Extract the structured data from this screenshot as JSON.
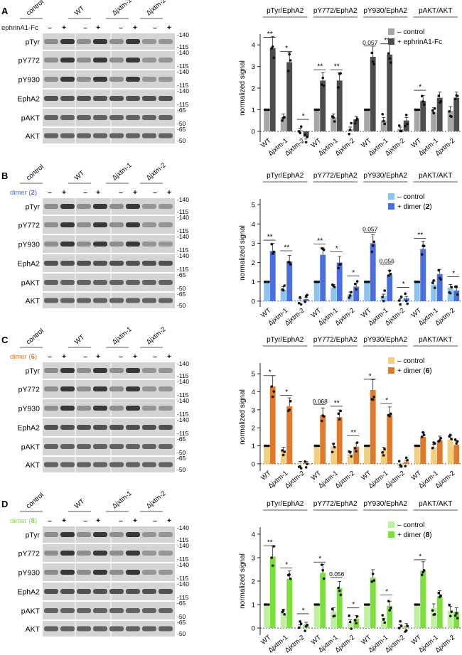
{
  "panels": [
    {
      "letter": "A",
      "treatment_label": "ephrinA1-Fc",
      "treatment_num": "",
      "main_color": "#4d4d4d",
      "light_color": "#a6a6a6",
      "legend": [
        "– control",
        "+ ephrinA1-Fc"
      ],
      "blot_rows": [
        "pTyr",
        "pY772",
        "pY930",
        "EphA2",
        "pAKT",
        "AKT"
      ],
      "marker_sets": [
        [
          "-140",
          "-115"
        ],
        [
          "-140",
          "-115"
        ],
        [
          "-140",
          "-115"
        ],
        [
          "-140",
          "-115"
        ],
        [
          "-65",
          "-50"
        ],
        [
          "-65",
          "-50"
        ]
      ],
      "chart_data": {
        "type": "bar",
        "ylabel": "normalized signal",
        "ylim": [
          -0.5,
          4.5
        ],
        "yticks": [
          0,
          1,
          2,
          3,
          4
        ],
        "groups": [
          "pTyr/EphA2",
          "pY772/EphA2",
          "pY930/EphA2",
          "pAKT/AKT"
        ],
        "categories": [
          "WT",
          "Δjxtm-1",
          "Δjxtm-2"
        ],
        "series": [
          {
            "name": "– control",
            "values": [
              [
                1,
                0.65,
                0.05
              ],
              [
                1,
                0.65,
                0.1
              ],
              [
                1,
                0.5,
                0.1
              ],
              [
                1,
                0.9,
                0.95
              ]
            ]
          },
          {
            "name": "+ ephrinA1-Fc",
            "values": [
              [
                3.85,
                3.2,
                -0.25
              ],
              [
                2.35,
                2.35,
                0.55
              ],
              [
                3.45,
                3.55,
                0.5
              ],
              [
                1.4,
                1.55,
                1.55
              ]
            ]
          }
        ],
        "annotations": [
          {
            "text": "**",
            "group": 0,
            "cat": 0
          },
          {
            "text": "*",
            "group": 0,
            "cat": 1
          },
          {
            "text": "*",
            "group": 0,
            "cat": 2
          },
          {
            "text": "**",
            "group": 1,
            "cat": 0
          },
          {
            "text": "**",
            "group": 1,
            "cat": 1
          },
          {
            "text": "0.057",
            "group": 2,
            "cat": 0
          },
          {
            "text": "**",
            "group": 2,
            "cat": 1
          },
          {
            "text": "*",
            "group": 3,
            "cat": 0
          }
        ]
      }
    },
    {
      "letter": "B",
      "treatment_label": "dimer (",
      "treatment_num": "2",
      "main_color": "#4a6ee0",
      "light_color": "#8cc4f0",
      "legend": [
        "– control",
        "+ dimer (2)"
      ],
      "blot_rows": [
        "pTyr",
        "pY772",
        "pY930",
        "EphA2",
        "pAKT",
        "AKT"
      ],
      "marker_sets": [
        [
          "-140",
          "-115"
        ],
        [
          "-140",
          "-115"
        ],
        [
          "-140",
          "-115"
        ],
        [
          "-140",
          "-115"
        ],
        [
          "-65",
          "-50"
        ],
        [
          "-65",
          "-50"
        ]
      ],
      "chart_data": {
        "type": "bar",
        "ylabel": "normalized signal",
        "ylim": [
          -0.3,
          5.3
        ],
        "yticks": [
          0,
          1,
          2,
          3,
          4,
          5
        ],
        "groups": [
          "pTyr/EphA2",
          "pY772/EphA2",
          "pY930/EphA2",
          "pAKT/AKT"
        ],
        "categories": [
          "WT",
          "Δjxtm-1",
          "Δjxtm-2"
        ],
        "series": [
          {
            "name": "– control",
            "values": [
              [
                1,
                0.6,
                0.05
              ],
              [
                1,
                0.7,
                0.35
              ],
              [
                1,
                0.25,
                0.05
              ],
              [
                1,
                0.85,
                0.7
              ]
            ]
          },
          {
            "name": "+ dimer (2)",
            "values": [
              [
                2.6,
                2.05,
                0.1
              ],
              [
                2.4,
                2.0,
                0.75
              ],
              [
                3.0,
                1.35,
                0.15
              ],
              [
                2.7,
                1.4,
                0.55
              ]
            ]
          }
        ],
        "annotations": [
          {
            "text": "**",
            "group": 0,
            "cat": 0
          },
          {
            "text": "**",
            "group": 0,
            "cat": 1
          },
          {
            "text": "**",
            "group": 1,
            "cat": 0
          },
          {
            "text": "*",
            "group": 1,
            "cat": 1
          },
          {
            "text": "*",
            "group": 1,
            "cat": 2
          },
          {
            "text": "0.057",
            "group": 2,
            "cat": 0
          },
          {
            "text": "0.056",
            "group": 2,
            "cat": 1
          },
          {
            "text": "*",
            "group": 2,
            "cat": 2
          },
          {
            "text": "**",
            "group": 3,
            "cat": 0
          },
          {
            "text": "*",
            "group": 3,
            "cat": 2
          }
        ]
      }
    },
    {
      "letter": "C",
      "treatment_label": "dimer (",
      "treatment_num": "6",
      "main_color": "#e07a2a",
      "light_color": "#f2cf7a",
      "legend": [
        "– control",
        "+ dimer (6)"
      ],
      "blot_rows": [
        "pTyr",
        "pY772",
        "pY930",
        "EphA2",
        "pAKT",
        "AKT"
      ],
      "marker_sets": [
        [
          "-140",
          "-115"
        ],
        [
          "-140",
          "-115"
        ],
        [
          "-140",
          "-115"
        ],
        [
          "-140",
          "-115"
        ],
        [
          "-65",
          "-50"
        ],
        [
          "-65",
          "-50"
        ]
      ],
      "chart_data": {
        "type": "bar",
        "ylabel": "normalized signal",
        "ylim": [
          -0.4,
          5.6
        ],
        "yticks": [
          0,
          1,
          2,
          3,
          4,
          5
        ],
        "groups": [
          "pTyr/EphA2",
          "pY772/EphA2",
          "pY930/EphA2",
          "pAKT/AKT"
        ],
        "categories": [
          "WT",
          "Δjxtm-1",
          "Δjxtm-2"
        ],
        "series": [
          {
            "name": "– control",
            "values": [
              [
                1,
                0.75,
                0.05
              ],
              [
                1,
                0.95,
                0.55
              ],
              [
                1,
                0.75,
                -0.1
              ],
              [
                1,
                0.9,
                1.35
              ]
            ]
          },
          {
            "name": "+ dimer (6)",
            "values": [
              [
                4.3,
                3.2,
                0.05
              ],
              [
                2.7,
                2.6,
                0.95
              ],
              [
                4.1,
                2.75,
                0.1
              ],
              [
                1.5,
                1.3,
                1.05
              ]
            ]
          }
        ],
        "annotations": [
          {
            "text": "*",
            "group": 0,
            "cat": 0
          },
          {
            "text": "*",
            "group": 0,
            "cat": 1
          },
          {
            "text": "0.068",
            "group": 1,
            "cat": 0
          },
          {
            "text": "**",
            "group": 1,
            "cat": 1
          },
          {
            "text": "**",
            "group": 1,
            "cat": 2
          },
          {
            "text": "*",
            "group": 2,
            "cat": 0
          },
          {
            "text": "*",
            "group": 2,
            "cat": 1
          }
        ]
      }
    },
    {
      "letter": "D",
      "treatment_label": "dimer (",
      "treatment_num": "8",
      "main_color": "#7be03a",
      "light_color": "#bff0a0",
      "legend": [
        "– control",
        "+ dimer (8)"
      ],
      "blot_rows": [
        "pTyr",
        "pY772",
        "pY930",
        "EphA2",
        "pAKT",
        "AKT"
      ],
      "marker_sets": [
        [
          "-140",
          "-115"
        ],
        [
          "-140",
          "-115"
        ],
        [
          "-140",
          "-115"
        ],
        [
          "-140",
          "-115"
        ],
        [
          "-65",
          "-50"
        ],
        [
          "-65",
          "-50"
        ]
      ],
      "chart_data": {
        "type": "bar",
        "ylabel": "normalized signal",
        "ylim": [
          -0.3,
          4.3
        ],
        "yticks": [
          0,
          1,
          2,
          3,
          4
        ],
        "groups": [
          "pTyr/EphA2",
          "pY772/EphA2",
          "pY930/EphA2",
          "pAKT/AKT"
        ],
        "categories": [
          "WT",
          "Δjxtm-1",
          "Δjxtm-2"
        ],
        "series": [
          {
            "name": "– control",
            "values": [
              [
                1,
                0.65,
                0.05
              ],
              [
                1,
                0.7,
                0.25
              ],
              [
                1,
                0.3,
                0.05
              ],
              [
                1,
                0.85,
                0.75
              ]
            ]
          },
          {
            "name": "+ dimer (8)",
            "values": [
              [
                3.05,
                2.1,
                0.15
              ],
              [
                2.35,
                1.7,
                0.4
              ],
              [
                2.15,
                0.95,
                0.1
              ],
              [
                2.45,
                1.35,
                0.7
              ]
            ]
          }
        ],
        "annotations": [
          {
            "text": "**",
            "group": 0,
            "cat": 0
          },
          {
            "text": "*",
            "group": 0,
            "cat": 1
          },
          {
            "text": "*",
            "group": 0,
            "cat": 2
          },
          {
            "text": "*",
            "group": 1,
            "cat": 0
          },
          {
            "text": "0.056",
            "group": 1,
            "cat": 1
          },
          {
            "text": "*",
            "group": 1,
            "cat": 2
          },
          {
            "text": "*",
            "group": 2,
            "cat": 1
          },
          {
            "text": "*",
            "group": 3,
            "cat": 0
          }
        ]
      }
    }
  ],
  "lane_headers": [
    "control",
    "WT",
    "Δjxtm-1",
    "Δjxtm-2"
  ],
  "sign_minus": "–",
  "sign_plus": "+",
  "num_close": ")"
}
